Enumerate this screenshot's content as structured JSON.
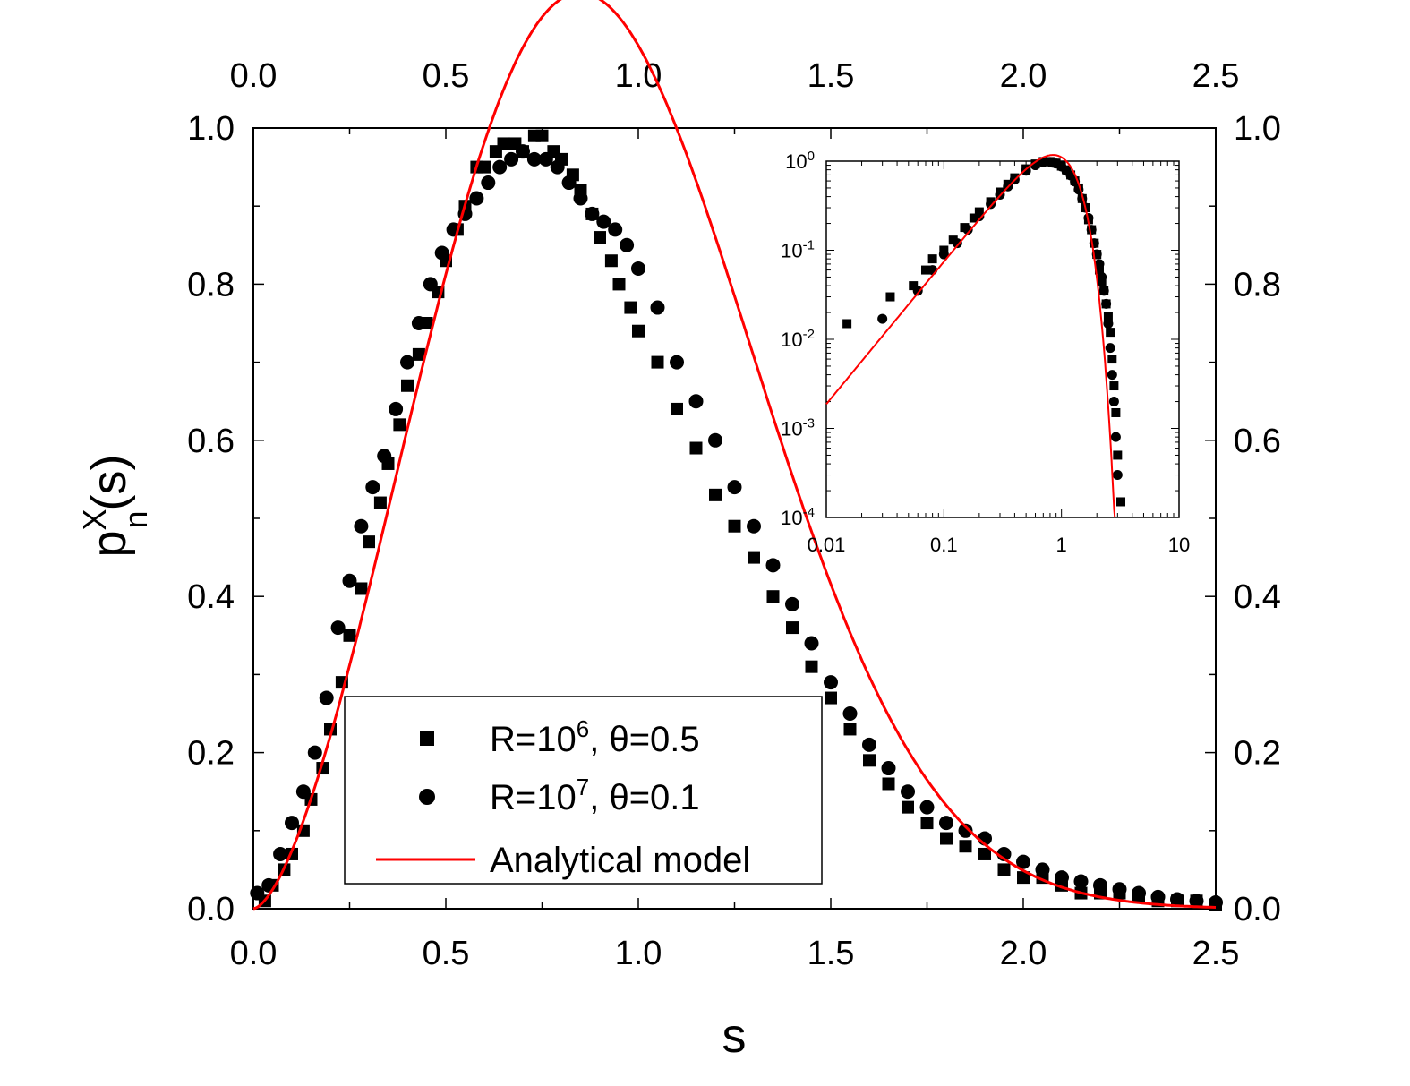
{
  "chart_data": {
    "type": "scatter",
    "xlabel": "s",
    "ylabel_main": "p",
    "ylabel_sup": "X",
    "ylabel_sub": "n",
    "ylabel_arg": "(s)",
    "xlim": [
      0.0,
      2.5
    ],
    "ylim": [
      0.0,
      1.0
    ],
    "x_ticks": [
      "0.0",
      "0.5",
      "1.0",
      "1.5",
      "2.0",
      "2.5"
    ],
    "y_ticks": [
      "0.0",
      "0.2",
      "0.4",
      "0.6",
      "0.8",
      "1.0"
    ],
    "model": {
      "name": "Analytical model",
      "color": "#ff0000",
      "form": "p(s) = A * s^a * exp(-(s/b)^c)",
      "A": 2.97,
      "a": 1.6,
      "b": 1.005,
      "c": 2.4
    },
    "series": [
      {
        "name": "squares",
        "marker": "square",
        "label_pre": "R=10",
        "label_exp": "6",
        "label_post": ", θ=0.5",
        "x": [
          0.03,
          0.05,
          0.08,
          0.1,
          0.13,
          0.15,
          0.18,
          0.2,
          0.23,
          0.25,
          0.28,
          0.3,
          0.33,
          0.35,
          0.38,
          0.4,
          0.43,
          0.45,
          0.48,
          0.5,
          0.53,
          0.55,
          0.58,
          0.6,
          0.63,
          0.65,
          0.68,
          0.7,
          0.73,
          0.75,
          0.78,
          0.8,
          0.83,
          0.85,
          0.88,
          0.9,
          0.93,
          0.95,
          0.98,
          1.0,
          1.05,
          1.1,
          1.15,
          1.2,
          1.25,
          1.3,
          1.35,
          1.4,
          1.45,
          1.5,
          1.55,
          1.6,
          1.65,
          1.7,
          1.75,
          1.8,
          1.85,
          1.9,
          1.95,
          2.0,
          2.05,
          2.1,
          2.15,
          2.2,
          2.25,
          2.3,
          2.35,
          2.4,
          2.45,
          2.5
        ],
        "y": [
          0.01,
          0.03,
          0.05,
          0.07,
          0.1,
          0.14,
          0.18,
          0.23,
          0.29,
          0.35,
          0.41,
          0.47,
          0.52,
          0.57,
          0.62,
          0.67,
          0.71,
          0.75,
          0.79,
          0.83,
          0.87,
          0.9,
          0.95,
          0.95,
          0.97,
          0.98,
          0.98,
          0.97,
          0.99,
          0.99,
          0.97,
          0.96,
          0.94,
          0.92,
          0.89,
          0.86,
          0.83,
          0.8,
          0.77,
          0.74,
          0.7,
          0.64,
          0.59,
          0.53,
          0.49,
          0.45,
          0.4,
          0.36,
          0.31,
          0.27,
          0.23,
          0.19,
          0.16,
          0.13,
          0.11,
          0.09,
          0.08,
          0.07,
          0.05,
          0.04,
          0.04,
          0.03,
          0.02,
          0.02,
          0.02,
          0.015,
          0.01,
          0.01,
          0.01,
          0.005
        ]
      },
      {
        "name": "circles",
        "marker": "circle",
        "label_pre": "R=10",
        "label_exp": "7",
        "label_post": ", θ=0.1",
        "x": [
          0.01,
          0.04,
          0.07,
          0.1,
          0.13,
          0.16,
          0.19,
          0.22,
          0.25,
          0.28,
          0.31,
          0.34,
          0.37,
          0.4,
          0.43,
          0.46,
          0.49,
          0.52,
          0.55,
          0.58,
          0.61,
          0.64,
          0.67,
          0.7,
          0.73,
          0.76,
          0.79,
          0.82,
          0.85,
          0.88,
          0.91,
          0.94,
          0.97,
          1.0,
          1.05,
          1.1,
          1.15,
          1.2,
          1.25,
          1.3,
          1.35,
          1.4,
          1.45,
          1.5,
          1.55,
          1.6,
          1.65,
          1.7,
          1.75,
          1.8,
          1.85,
          1.9,
          1.95,
          2.0,
          2.05,
          2.1,
          2.15,
          2.2,
          2.25,
          2.3,
          2.35,
          2.4,
          2.45,
          2.5
        ],
        "y": [
          0.02,
          0.03,
          0.07,
          0.11,
          0.15,
          0.2,
          0.27,
          0.36,
          0.42,
          0.49,
          0.54,
          0.58,
          0.64,
          0.7,
          0.75,
          0.8,
          0.84,
          0.87,
          0.89,
          0.91,
          0.93,
          0.95,
          0.96,
          0.97,
          0.96,
          0.96,
          0.95,
          0.93,
          0.91,
          0.89,
          0.88,
          0.87,
          0.85,
          0.82,
          0.77,
          0.7,
          0.65,
          0.6,
          0.54,
          0.49,
          0.44,
          0.39,
          0.34,
          0.29,
          0.25,
          0.21,
          0.18,
          0.15,
          0.13,
          0.11,
          0.1,
          0.09,
          0.07,
          0.06,
          0.05,
          0.04,
          0.035,
          0.03,
          0.025,
          0.02,
          0.015,
          0.012,
          0.01,
          0.008
        ]
      }
    ],
    "inset": {
      "xscale": "log",
      "yscale": "log",
      "xlim": [
        0.01,
        10
      ],
      "ylim": [
        0.0001,
        1
      ],
      "x_ticks": [
        "0.01",
        "0.1",
        "1",
        "10"
      ],
      "y_ticks": [
        {
          "base": "10",
          "exp": "-4"
        },
        {
          "base": "10",
          "exp": "-3"
        },
        {
          "base": "10",
          "exp": "-2"
        },
        {
          "base": "10",
          "exp": "-1"
        },
        {
          "base": "10",
          "exp": "0"
        }
      ],
      "squares_x": [
        0.015,
        0.035,
        0.055,
        0.07,
        0.08,
        0.1,
        0.12,
        0.15,
        0.18,
        0.2,
        0.25,
        0.3,
        0.35,
        0.4,
        0.5,
        0.6,
        0.7,
        0.8,
        0.9,
        1.0,
        1.1,
        1.2,
        1.3,
        1.4,
        1.5,
        1.6,
        1.7,
        1.8,
        1.9,
        2.0,
        2.1,
        2.2,
        2.3,
        2.4,
        2.5,
        2.6,
        2.7,
        2.8,
        2.9,
        3.0,
        3.2
      ],
      "squares_y": [
        0.015,
        0.03,
        0.04,
        0.06,
        0.08,
        0.1,
        0.13,
        0.18,
        0.23,
        0.27,
        0.35,
        0.45,
        0.55,
        0.65,
        0.82,
        0.93,
        0.99,
        0.99,
        0.95,
        0.88,
        0.8,
        0.7,
        0.6,
        0.5,
        0.38,
        0.3,
        0.22,
        0.17,
        0.12,
        0.09,
        0.06,
        0.045,
        0.035,
        0.025,
        0.018,
        0.012,
        0.006,
        0.003,
        0.0015,
        0.0005,
        0.00015
      ],
      "circles_x": [
        0.03,
        0.06,
        0.08,
        0.1,
        0.13,
        0.16,
        0.2,
        0.25,
        0.3,
        0.35,
        0.4,
        0.5,
        0.6,
        0.7,
        0.8,
        0.9,
        1.0,
        1.1,
        1.2,
        1.3,
        1.4,
        1.5,
        1.6,
        1.7,
        1.8,
        1.9,
        2.0,
        2.1,
        2.2,
        2.3,
        2.4,
        2.5,
        2.6,
        2.7,
        2.8,
        2.9,
        3.0
      ],
      "circles_y": [
        0.017,
        0.035,
        0.06,
        0.09,
        0.12,
        0.17,
        0.24,
        0.33,
        0.42,
        0.52,
        0.62,
        0.78,
        0.9,
        0.97,
        0.98,
        0.94,
        0.87,
        0.78,
        0.69,
        0.59,
        0.48,
        0.38,
        0.3,
        0.23,
        0.17,
        0.12,
        0.09,
        0.07,
        0.05,
        0.035,
        0.025,
        0.015,
        0.008,
        0.004,
        0.002,
        0.0008,
        0.0003
      ]
    }
  }
}
